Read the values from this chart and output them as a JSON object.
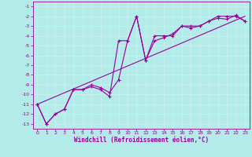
{
  "xlabel": "Windchill (Refroidissement éolien,°C)",
  "bg_color": "#b2ebe8",
  "grid_color": "#c8f0ee",
  "line_color": "#990099",
  "xlim": [
    -0.5,
    23.5
  ],
  "ylim": [
    -13.5,
    -0.5
  ],
  "xticks": [
    0,
    1,
    2,
    3,
    4,
    5,
    6,
    7,
    8,
    9,
    10,
    11,
    12,
    13,
    14,
    15,
    16,
    17,
    18,
    19,
    20,
    21,
    22,
    23
  ],
  "yticks": [
    -13,
    -12,
    -11,
    -10,
    -9,
    -8,
    -7,
    -6,
    -5,
    -4,
    -3,
    -2,
    -1
  ],
  "line1_x": [
    0,
    1,
    2,
    3,
    4,
    5,
    6,
    7,
    8,
    9,
    10,
    11,
    12,
    13,
    14,
    15,
    16,
    17,
    18,
    19,
    20,
    21,
    22,
    23
  ],
  "line1_y": [
    -11,
    -13,
    -12,
    -11.5,
    -9.5,
    -9.5,
    -9.2,
    -9.5,
    -10.2,
    -4.5,
    -4.5,
    -2,
    -6.5,
    -4,
    -4,
    -4,
    -3,
    -3,
    -3,
    -2.5,
    -2,
    -2,
    -2,
    -2.5
  ],
  "line2_x": [
    0,
    1,
    2,
    3,
    4,
    5,
    6,
    7,
    8,
    9,
    10,
    11,
    12,
    13,
    14,
    15,
    16,
    17,
    18,
    19,
    20,
    21,
    22,
    23
  ],
  "line2_y": [
    -11,
    -13,
    -12,
    -11.5,
    -9.5,
    -9.5,
    -9.0,
    -9.3,
    -9.8,
    -8.5,
    -4.5,
    -2,
    -6.5,
    -4.5,
    -4.2,
    -3.8,
    -3,
    -3.2,
    -3.0,
    -2.5,
    -2.2,
    -2.3,
    -1.9,
    -2.5
  ],
  "ref_line_x": [
    0,
    23
  ],
  "ref_line_y": [
    -11,
    -2.0
  ]
}
